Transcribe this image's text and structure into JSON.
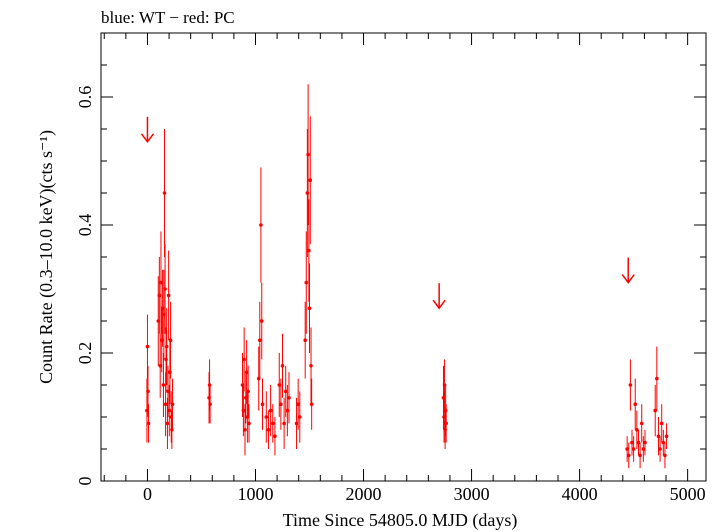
{
  "chart_data": {
    "type": "scatter",
    "title": "blue: WT − red: PC",
    "xlabel": "Time Since 54805.0 MJD (days)",
    "ylabel": "Count Rate (0.3–10.0 keV)(cts s⁻¹)",
    "xlim": [
      -430,
      5170
    ],
    "ylim": [
      0,
      0.7
    ],
    "xticks": [
      0,
      1000,
      2000,
      3000,
      4000,
      5000
    ],
    "xtick_labels": [
      "0",
      "1000",
      "2000",
      "3000",
      "4000",
      "5000"
    ],
    "yticks": [
      0,
      0.2,
      0.4,
      0.6
    ],
    "ytick_labels": [
      "0",
      "0.2",
      "0.4",
      "0.6"
    ],
    "grid": false,
    "colors": {
      "PC": "#ff0000",
      "WT": "#0000ff"
    },
    "upper_limits": [
      {
        "x": 0,
        "y": 0.53
      },
      {
        "x": 2700,
        "y": 0.27
      },
      {
        "x": 4450,
        "y": 0.31
      }
    ],
    "series": [
      {
        "name": "PC",
        "points": [
          {
            "x": -5,
            "y": 0.11,
            "err": 0.05
          },
          {
            "x": 0,
            "y": 0.21,
            "err": 0.05
          },
          {
            "x": 5,
            "y": 0.14,
            "err": 0.04
          },
          {
            "x": 10,
            "y": 0.09,
            "err": 0.03
          },
          {
            "x": 100,
            "y": 0.25,
            "err": 0.07
          },
          {
            "x": 110,
            "y": 0.29,
            "err": 0.06
          },
          {
            "x": 118,
            "y": 0.18,
            "err": 0.05
          },
          {
            "x": 125,
            "y": 0.31,
            "err": 0.08
          },
          {
            "x": 132,
            "y": 0.22,
            "err": 0.05
          },
          {
            "x": 140,
            "y": 0.27,
            "err": 0.06
          },
          {
            "x": 148,
            "y": 0.15,
            "err": 0.05
          },
          {
            "x": 152,
            "y": 0.26,
            "err": 0.07
          },
          {
            "x": 158,
            "y": 0.45,
            "err": 0.1
          },
          {
            "x": 163,
            "y": 0.3,
            "err": 0.07
          },
          {
            "x": 168,
            "y": 0.12,
            "err": 0.05
          },
          {
            "x": 172,
            "y": 0.19,
            "err": 0.05
          },
          {
            "x": 178,
            "y": 0.21,
            "err": 0.06
          },
          {
            "x": 185,
            "y": 0.09,
            "err": 0.04
          },
          {
            "x": 190,
            "y": 0.14,
            "err": 0.04
          },
          {
            "x": 196,
            "y": 0.29,
            "err": 0.07
          },
          {
            "x": 202,
            "y": 0.11,
            "err": 0.04
          },
          {
            "x": 208,
            "y": 0.17,
            "err": 0.05
          },
          {
            "x": 214,
            "y": 0.22,
            "err": 0.06
          },
          {
            "x": 220,
            "y": 0.1,
            "err": 0.04
          },
          {
            "x": 226,
            "y": 0.08,
            "err": 0.03
          },
          {
            "x": 232,
            "y": 0.12,
            "err": 0.04
          },
          {
            "x": 570,
            "y": 0.13,
            "err": 0.04
          },
          {
            "x": 575,
            "y": 0.15,
            "err": 0.04
          },
          {
            "x": 580,
            "y": 0.12,
            "err": 0.03
          },
          {
            "x": 880,
            "y": 0.15,
            "err": 0.05
          },
          {
            "x": 888,
            "y": 0.11,
            "err": 0.04
          },
          {
            "x": 895,
            "y": 0.19,
            "err": 0.05
          },
          {
            "x": 903,
            "y": 0.08,
            "err": 0.04
          },
          {
            "x": 910,
            "y": 0.13,
            "err": 0.04
          },
          {
            "x": 918,
            "y": 0.17,
            "err": 0.05
          },
          {
            "x": 925,
            "y": 0.1,
            "err": 0.04
          },
          {
            "x": 932,
            "y": 0.14,
            "err": 0.04
          },
          {
            "x": 940,
            "y": 0.09,
            "err": 0.03
          },
          {
            "x": 1030,
            "y": 0.16,
            "err": 0.05
          },
          {
            "x": 1040,
            "y": 0.22,
            "err": 0.06
          },
          {
            "x": 1050,
            "y": 0.4,
            "err": 0.09
          },
          {
            "x": 1058,
            "y": 0.25,
            "err": 0.06
          },
          {
            "x": 1065,
            "y": 0.12,
            "err": 0.04
          },
          {
            "x": 1100,
            "y": 0.1,
            "err": 0.04
          },
          {
            "x": 1120,
            "y": 0.08,
            "err": 0.03
          },
          {
            "x": 1140,
            "y": 0.11,
            "err": 0.04
          },
          {
            "x": 1160,
            "y": 0.09,
            "err": 0.03
          },
          {
            "x": 1180,
            "y": 0.07,
            "err": 0.03
          },
          {
            "x": 1220,
            "y": 0.15,
            "err": 0.05
          },
          {
            "x": 1235,
            "y": 0.12,
            "err": 0.04
          },
          {
            "x": 1250,
            "y": 0.18,
            "err": 0.05
          },
          {
            "x": 1265,
            "y": 0.09,
            "err": 0.04
          },
          {
            "x": 1280,
            "y": 0.14,
            "err": 0.04
          },
          {
            "x": 1295,
            "y": 0.11,
            "err": 0.04
          },
          {
            "x": 1310,
            "y": 0.13,
            "err": 0.04
          },
          {
            "x": 1380,
            "y": 0.09,
            "err": 0.04
          },
          {
            "x": 1395,
            "y": 0.12,
            "err": 0.04
          },
          {
            "x": 1410,
            "y": 0.1,
            "err": 0.04
          },
          {
            "x": 1460,
            "y": 0.22,
            "err": 0.06
          },
          {
            "x": 1470,
            "y": 0.31,
            "err": 0.08
          },
          {
            "x": 1480,
            "y": 0.45,
            "err": 0.1
          },
          {
            "x": 1487,
            "y": 0.51,
            "err": 0.11
          },
          {
            "x": 1494,
            "y": 0.36,
            "err": 0.08
          },
          {
            "x": 1500,
            "y": 0.27,
            "err": 0.07
          },
          {
            "x": 1507,
            "y": 0.47,
            "err": 0.1
          },
          {
            "x": 1514,
            "y": 0.18,
            "err": 0.06
          },
          {
            "x": 1520,
            "y": 0.12,
            "err": 0.04
          },
          {
            "x": 2740,
            "y": 0.13,
            "err": 0.05
          },
          {
            "x": 2745,
            "y": 0.1,
            "err": 0.04
          },
          {
            "x": 2750,
            "y": 0.15,
            "err": 0.04
          },
          {
            "x": 2755,
            "y": 0.08,
            "err": 0.03
          },
          {
            "x": 2760,
            "y": 0.11,
            "err": 0.04
          },
          {
            "x": 2765,
            "y": 0.09,
            "err": 0.03
          },
          {
            "x": 4440,
            "y": 0.05,
            "err": 0.02
          },
          {
            "x": 4455,
            "y": 0.04,
            "err": 0.02
          },
          {
            "x": 4470,
            "y": 0.15,
            "err": 0.04
          },
          {
            "x": 4485,
            "y": 0.06,
            "err": 0.02
          },
          {
            "x": 4500,
            "y": 0.05,
            "err": 0.02
          },
          {
            "x": 4515,
            "y": 0.12,
            "err": 0.04
          },
          {
            "x": 4530,
            "y": 0.08,
            "err": 0.03
          },
          {
            "x": 4545,
            "y": 0.06,
            "err": 0.02
          },
          {
            "x": 4560,
            "y": 0.04,
            "err": 0.02
          },
          {
            "x": 4575,
            "y": 0.09,
            "err": 0.03
          },
          {
            "x": 4590,
            "y": 0.05,
            "err": 0.02
          },
          {
            "x": 4605,
            "y": 0.06,
            "err": 0.02
          },
          {
            "x": 4700,
            "y": 0.11,
            "err": 0.04
          },
          {
            "x": 4715,
            "y": 0.16,
            "err": 0.05
          },
          {
            "x": 4730,
            "y": 0.07,
            "err": 0.03
          },
          {
            "x": 4745,
            "y": 0.05,
            "err": 0.02
          },
          {
            "x": 4760,
            "y": 0.09,
            "err": 0.03
          },
          {
            "x": 4775,
            "y": 0.06,
            "err": 0.02
          },
          {
            "x": 4790,
            "y": 0.04,
            "err": 0.02
          },
          {
            "x": 4805,
            "y": 0.07,
            "err": 0.02
          }
        ]
      }
    ]
  }
}
